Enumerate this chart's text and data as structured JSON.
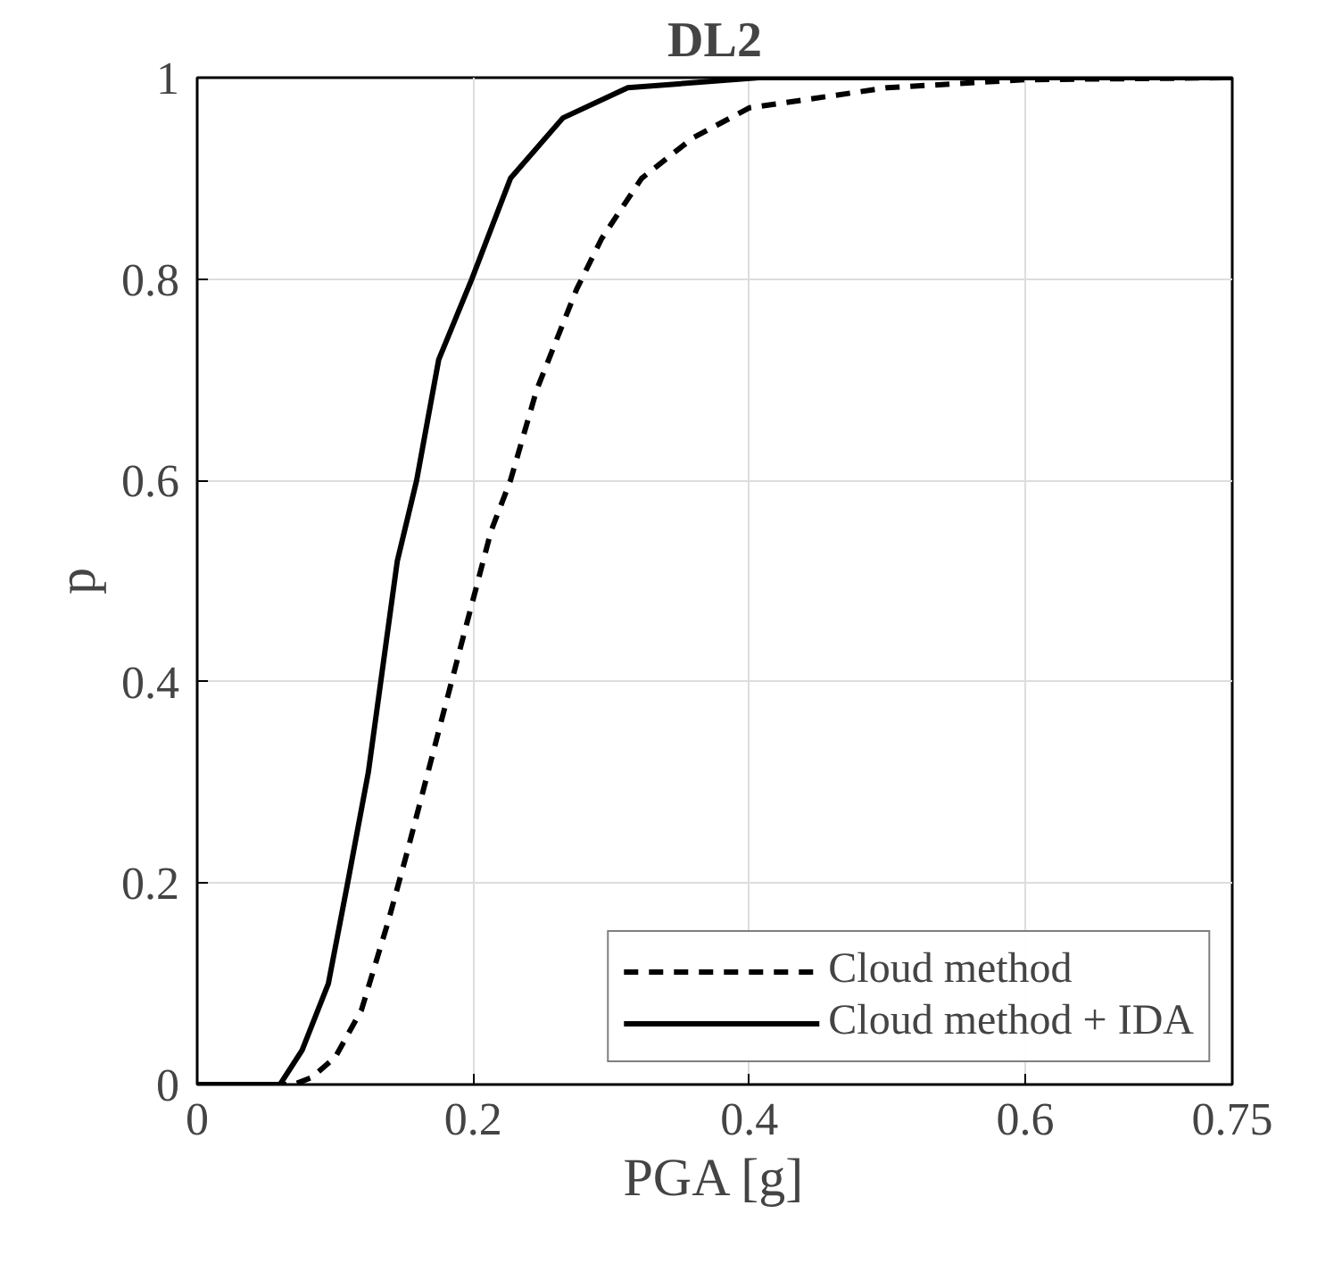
{
  "chart_data": {
    "type": "line",
    "title": "DL2",
    "xlabel": "PGA [g]",
    "ylabel": "p",
    "xlim": [
      0,
      0.75
    ],
    "ylim": [
      0,
      1
    ],
    "xticks": [
      0,
      0.2,
      0.4,
      0.6,
      0.75
    ],
    "yticks": [
      0,
      {
        "value": 0.2,
        "label": "0.2"
      },
      {
        "value": 0.4,
        "label": "0.4"
      },
      {
        "value": 0.6,
        "label": "0.6"
      },
      {
        "value": 0.8,
        "label": "0.8"
      },
      1
    ],
    "grid": true,
    "legend": "bottom right",
    "series": [
      {
        "name": "Cloud method",
        "color": "#000000",
        "line_style": "dashed",
        "x": [
          0,
          0.07,
          0.083,
          0.1,
          0.119,
          0.138,
          0.152,
          0.171,
          0.19,
          0.213,
          0.227,
          0.246,
          0.275,
          0.293,
          0.322,
          0.359,
          0.4,
          0.5,
          0.6,
          0.75
        ],
        "values": [
          0,
          0,
          0.007,
          0.027,
          0.074,
          0.16,
          0.23,
          0.33,
          0.43,
          0.55,
          0.6,
          0.69,
          0.79,
          0.84,
          0.9,
          0.94,
          0.97,
          0.99,
          0.998,
          1
        ]
      },
      {
        "name": "Cloud method + IDA",
        "color": "#000000",
        "line_style": "solid",
        "x": [
          0,
          0.053,
          0.06,
          0.076,
          0.095,
          0.109,
          0.124,
          0.133,
          0.145,
          0.159,
          0.175,
          0.199,
          0.227,
          0.265,
          0.312,
          0.407,
          0.75
        ],
        "values": [
          0,
          0,
          0,
          0.034,
          0.1,
          0.2,
          0.31,
          0.4,
          0.52,
          0.6,
          0.72,
          0.8,
          0.9,
          0.96,
          0.99,
          1,
          1
        ]
      }
    ]
  }
}
